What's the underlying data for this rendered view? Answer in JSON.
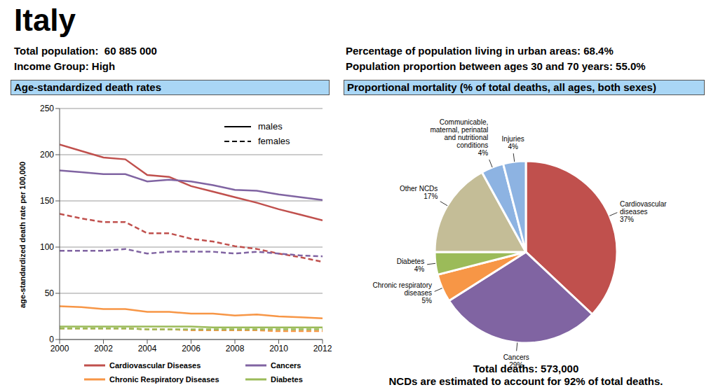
{
  "title": "Italy",
  "info_left": [
    "Total population:  60 885 000",
    "Income Group: High"
  ],
  "info_right": [
    "Percentage of population living in urban areas: 68.4%",
    "Population proportion between ages 30 and 70 years: 55.0%"
  ],
  "chart_data": [
    {
      "type": "line",
      "title": "Age-standardized death rates",
      "y_label": "age-standardized death rate per 100,000",
      "x": [
        2000,
        2001,
        2002,
        2003,
        2004,
        2005,
        2006,
        2007,
        2008,
        2009,
        2010,
        2011,
        2012
      ],
      "xlim": [
        2000,
        2012
      ],
      "xticks": [
        2000,
        2002,
        2004,
        2006,
        2008,
        2010,
        2012
      ],
      "ylim": [
        0,
        250
      ],
      "yticks": [
        0,
        50,
        100,
        150,
        200,
        250
      ],
      "grid": true,
      "series": [
        {
          "name": "Cardiovascular Diseases",
          "sex": "males",
          "line_style": "solid",
          "color": "#c0504d",
          "values": [
            211,
            204,
            197,
            195,
            178,
            176,
            166,
            160,
            154,
            148,
            141,
            135,
            129
          ]
        },
        {
          "name": "Cancers",
          "sex": "males",
          "line_style": "solid",
          "color": "#8064a2",
          "values": [
            183,
            181,
            179,
            179,
            171,
            173,
            171,
            167,
            162,
            161,
            157,
            154,
            151
          ]
        },
        {
          "name": "Chronic Respiratory Diseases",
          "sex": "males",
          "line_style": "solid",
          "color": "#f79646",
          "values": [
            36,
            35,
            33,
            33,
            30,
            30,
            28,
            28,
            26,
            27,
            25,
            24,
            23
          ]
        },
        {
          "name": "Diabetes",
          "sex": "males",
          "line_style": "solid",
          "color": "#9bbb59",
          "values": [
            14,
            14,
            14,
            14,
            14,
            14,
            14,
            13,
            13,
            13,
            13,
            13,
            13
          ]
        },
        {
          "name": "Cardiovascular Diseases",
          "sex": "females",
          "line_style": "dashed",
          "color": "#c0504d",
          "values": [
            136,
            131,
            127,
            127,
            115,
            115,
            109,
            106,
            101,
            98,
            93,
            89,
            84
          ]
        },
        {
          "name": "Cancers",
          "sex": "females",
          "line_style": "dashed",
          "color": "#8064a2",
          "values": [
            96,
            96,
            96,
            98,
            93,
            95,
            95,
            95,
            93,
            95,
            93,
            91,
            90
          ]
        },
        {
          "name": "Chronic Respiratory Diseases",
          "sex": "females",
          "line_style": "dashed",
          "color": "#f79646",
          "values": [
            12,
            12,
            12,
            12,
            11,
            11,
            10,
            10,
            10,
            10,
            9,
            9,
            9
          ]
        },
        {
          "name": "Diabetes",
          "sex": "females",
          "line_style": "dashed",
          "color": "#9bbb59",
          "values": [
            12,
            12,
            12,
            12,
            11,
            11,
            11,
            11,
            11,
            11,
            11,
            11,
            11
          ]
        }
      ]
    },
    {
      "type": "pie",
      "title": "Proportional mortality (% of total deaths, all ages, both sexes)",
      "categories": [
        "Cardiovascular diseases",
        "Cancers",
        "Chronic respiratory diseases",
        "Diabetes",
        "Other NCDs",
        "Communicable, maternal, perinatal and nutritional conditions",
        "Injuries"
      ],
      "values": [
        37,
        29,
        5,
        4,
        17,
        4,
        4
      ],
      "value_labels": [
        "37%",
        "29%",
        "5%",
        "4%",
        "17%",
        "4%",
        "4%"
      ],
      "colors": [
        "#c0504d",
        "#8064a2",
        "#f79646",
        "#9bbb59",
        "#c4bd97",
        "#8db3e2",
        "#8db3e2"
      ],
      "data_labels": true,
      "annotations": [
        "Total deaths: 573,000",
        "NCDs are estimated to account for 92% of total deaths."
      ]
    }
  ]
}
